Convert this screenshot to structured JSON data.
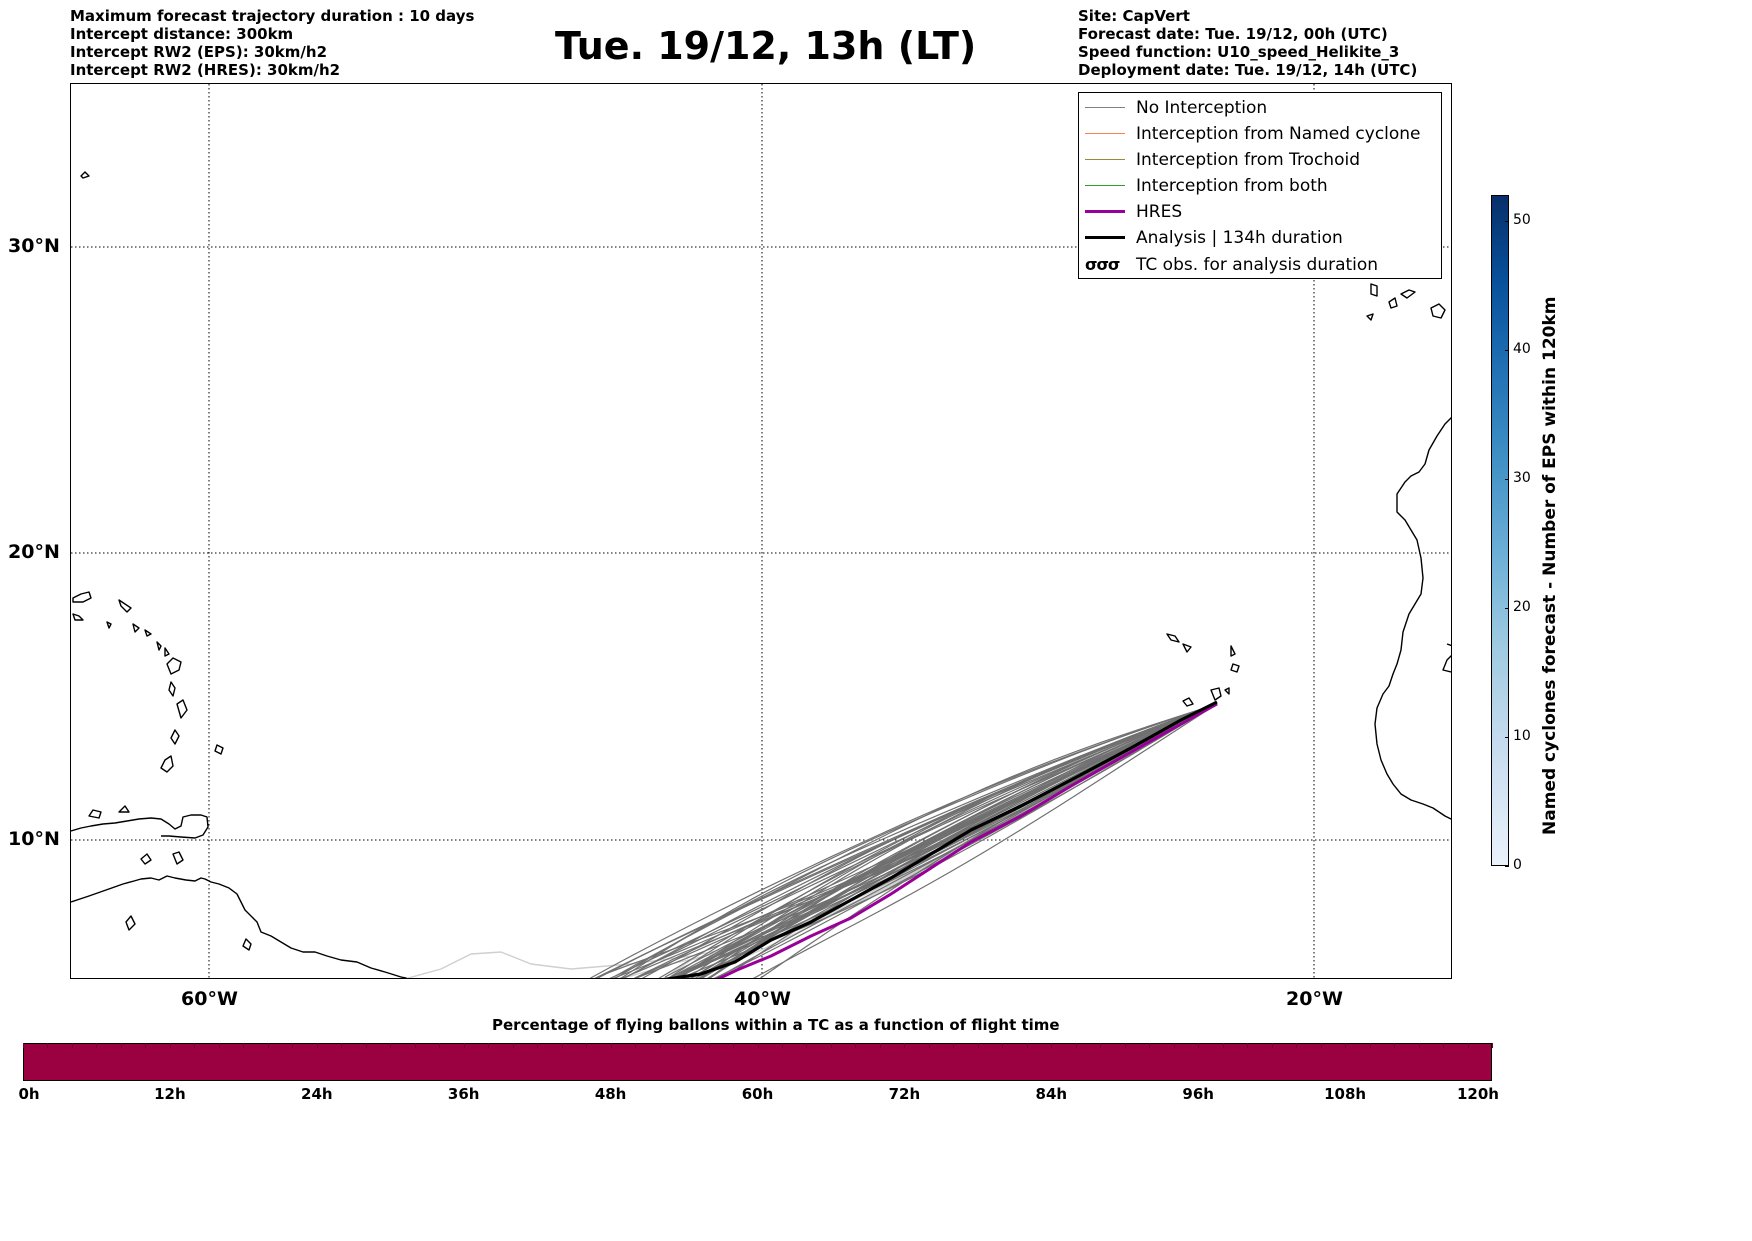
{
  "header_left": [
    "Maximum forecast trajectory duration : 10 days",
    "Intercept distance: 300km",
    "Intercept RW2 (EPS):  30km/h2",
    "Intercept RW2 (HRES): 30km/h2"
  ],
  "title": "Tue. 19/12, 13h (LT)",
  "header_right": [
    "Site: CapVert",
    "Forecast date: Tue. 19/12, 00h (UTC)",
    "Speed function: U10_speed_Helikite_3",
    "Deployment date: Tue. 19/12, 14h (UTC)"
  ],
  "map": {
    "lat_labels": [
      "30°N",
      "20°N",
      "10°N"
    ],
    "lon_labels": [
      "60°W",
      "40°W",
      "20°W"
    ],
    "grid": true
  },
  "legend": {
    "items": [
      {
        "label": "No Interception",
        "color": "#808080",
        "style": "thin"
      },
      {
        "label": "Interception from Named cyclone",
        "color": "#ff7f50",
        "style": "thin"
      },
      {
        "label": "Interception from Trochoid",
        "color": "#9b8a3c",
        "style": "thin"
      },
      {
        "label": "Interception from both",
        "color": "#2ca02c",
        "style": "thin"
      },
      {
        "label": "HRES",
        "color": "#990099",
        "style": "thick"
      },
      {
        "label": "Analysis | 134h duration",
        "color": "#000000",
        "style": "thick"
      },
      {
        "label": "TC obs. for analysis duration",
        "color": "#000000",
        "style": "symbol",
        "symbol": "σσσ"
      }
    ]
  },
  "colorbar_right": {
    "label": "Named cyclones forecast - Number of EPS within 120km",
    "ticks": [
      "0",
      "10",
      "20",
      "30",
      "40",
      "50"
    ],
    "max": 52
  },
  "colorbar_bottom": {
    "title": "Percentage of flying ballons within a TC as a function of flight time",
    "ticks": [
      "0h",
      "12h",
      "24h",
      "36h",
      "48h",
      "60h",
      "72h",
      "84h",
      "96h",
      "108h",
      "120h"
    ],
    "color": "#9b0041"
  },
  "trajectories": {
    "origin": "CapVert",
    "analysis_color": "#000000",
    "hres_color": "#990099",
    "ensemble_color": "#707070",
    "ensemble_light_color": "#cfcfcf"
  }
}
